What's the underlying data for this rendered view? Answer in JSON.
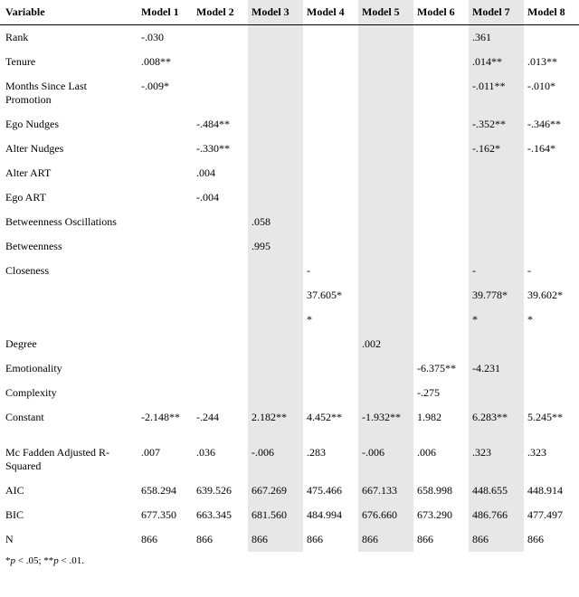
{
  "header": {
    "variable": "Variable",
    "models": [
      "Model 1",
      "Model 2",
      "Model 3",
      "Model 4",
      "Model 5",
      "Model 6",
      "Model 7",
      "Model 8"
    ]
  },
  "rows": [
    {
      "label": "Rank",
      "vals": [
        "-.030",
        "",
        "",
        "",
        "",
        "",
        ".361",
        ""
      ]
    },
    {
      "label": "Tenure",
      "vals": [
        ".008**",
        "",
        "",
        "",
        "",
        "",
        ".014**",
        ".013**"
      ]
    },
    {
      "label": "Months Since Last Promotion",
      "vals": [
        "-.009*",
        "",
        "",
        "",
        "",
        "",
        "-.011**",
        "-.010*"
      ]
    },
    {
      "label": "Ego Nudges",
      "vals": [
        "",
        "-.484**",
        "",
        "",
        "",
        "",
        "-.352**",
        "-.346**"
      ]
    },
    {
      "label": "Alter Nudges",
      "vals": [
        "",
        "-.330**",
        "",
        "",
        "",
        "",
        "-.162*",
        "-.164*"
      ]
    },
    {
      "label": "Alter ART",
      "vals": [
        "",
        ".004",
        "",
        "",
        "",
        "",
        "",
        ""
      ]
    },
    {
      "label": "Ego ART",
      "vals": [
        "",
        "-.004",
        "",
        "",
        "",
        "",
        "",
        ""
      ]
    },
    {
      "label": "Betweenness Oscillations",
      "vals": [
        "",
        "",
        ".058",
        "",
        "",
        "",
        "",
        ""
      ]
    },
    {
      "label": "Betweenness",
      "vals": [
        "",
        "",
        ".995",
        "",
        "",
        "",
        "",
        ""
      ]
    },
    {
      "label": "Closeness",
      "vals": [
        "",
        "",
        "",
        "-",
        "",
        "",
        "-",
        "-"
      ]
    },
    {
      "label": "",
      "vals": [
        "",
        "",
        "",
        "37.605*",
        "",
        "",
        "39.778*",
        "39.602*"
      ]
    },
    {
      "label": "",
      "vals": [
        "",
        "",
        "",
        "*",
        "",
        "",
        "*",
        "*"
      ]
    },
    {
      "label": "Degree",
      "vals": [
        "",
        "",
        "",
        "",
        ".002",
        "",
        "",
        ""
      ]
    },
    {
      "label": "Emotionality",
      "vals": [
        "",
        "",
        "",
        "",
        "",
        "-6.375**",
        "-4.231",
        ""
      ]
    },
    {
      "label": "Complexity",
      "vals": [
        "",
        "",
        "",
        "",
        "",
        "-.275",
        "",
        ""
      ]
    },
    {
      "label": "Constant",
      "vals": [
        "-2.148**",
        "-.244",
        "2.182**",
        "4.452**",
        "-1.932**",
        "1.982",
        "6.283**",
        "5.245**"
      ]
    }
  ],
  "stats": [
    {
      "label": "Mc Fadden Adjusted R-Squared",
      "vals": [
        ".007",
        ".036",
        "-.006",
        ".283",
        "-.006",
        ".006",
        ".323",
        ".323"
      ]
    },
    {
      "label": "AIC",
      "vals": [
        "658.294",
        "639.526",
        "667.269",
        "475.466",
        "667.133",
        "658.998",
        "448.655",
        "448.914"
      ]
    },
    {
      "label": "BIC",
      "vals": [
        "677.350",
        "663.345",
        "681.560",
        "484.994",
        "676.660",
        "673.290",
        "486.766",
        "477.497"
      ]
    },
    {
      "label": "N",
      "vals": [
        "866",
        "866",
        "866",
        "866",
        "866",
        "866",
        "866",
        "866"
      ]
    }
  ],
  "footnote": {
    "prefix1": "*",
    "p1": "p",
    "t1": " < .05; ",
    "prefix2": "**",
    "p2": "p",
    "t2": " < .01."
  },
  "shaded_cols": [
    3,
    5,
    7
  ]
}
